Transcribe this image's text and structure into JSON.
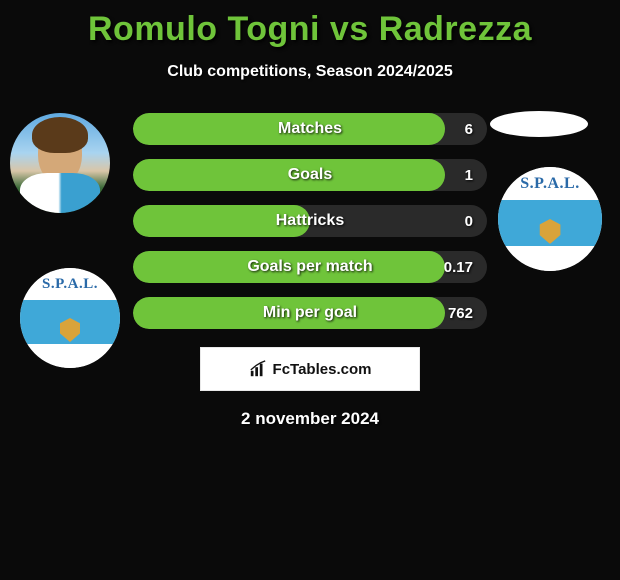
{
  "title_color": "#6fc43a",
  "title": "Romulo Togni vs Radrezza",
  "subtitle": "Club competitions, Season 2024/2025",
  "date": "2 november 2024",
  "watermark_text": "FcTables.com",
  "bar_track_color": "#2a2a2a",
  "bar_fill_color": "#6fc43a",
  "text_color": "#ffffff",
  "background_color": "#0a0a0a",
  "stats": [
    {
      "label": "Matches",
      "right_value": "6",
      "fill_pct": 88
    },
    {
      "label": "Goals",
      "right_value": "1",
      "fill_pct": 88
    },
    {
      "label": "Hattricks",
      "right_value": "0",
      "fill_pct": 50
    },
    {
      "label": "Goals per match",
      "right_value": "0.17",
      "fill_pct": 88
    },
    {
      "label": "Min per goal",
      "right_value": "762",
      "fill_pct": 88
    }
  ],
  "club_badge": {
    "text": "S.P.A.L.",
    "top_color": "#ffffff",
    "mid_color": "#3fa8d8",
    "text_color": "#2a6aa8",
    "shield_color": "#d9a33a"
  }
}
